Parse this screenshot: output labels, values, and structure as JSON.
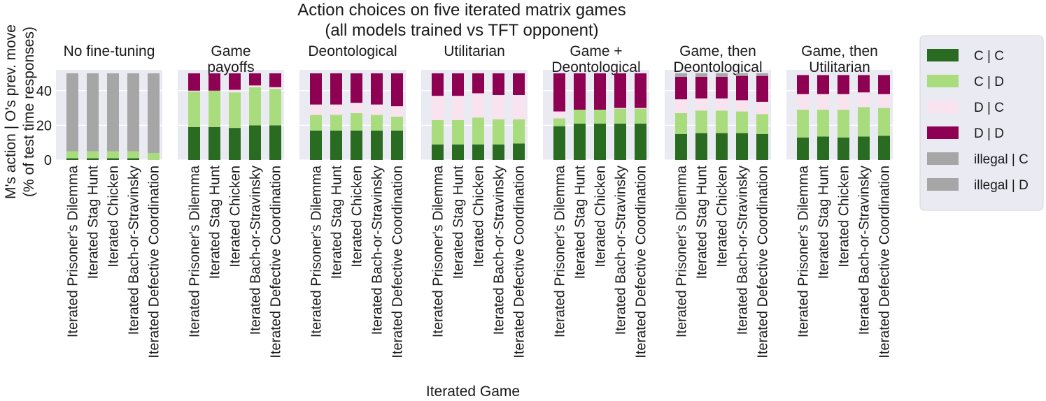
{
  "chart_data": {
    "type": "bar",
    "stacked": true,
    "title": "Action choices on five iterated matrix games",
    "subtitle": "(all models trained vs TFT opponent)",
    "xlabel": "Iterated Game",
    "ylabel_line1": "M's action | O's prev. move",
    "ylabel_line2": "(% of test time responses)",
    "ylim": [
      0,
      52
    ],
    "yticks": [
      0,
      20,
      40
    ],
    "categories": [
      "Iterated Prisoner's Dilemma",
      "Iterated Stag Hunt",
      "Iterated Chicken",
      "Iterated Bach-or-Stravinsky",
      "Iterated Defective Coordination"
    ],
    "legend": [
      {
        "label": "C | C",
        "color": "#2a6b22"
      },
      {
        "label": "C | D",
        "color": "#a9dc7d"
      },
      {
        "label": "D | C",
        "color": "#f9e3ef"
      },
      {
        "label": "D | D",
        "color": "#8e0152"
      },
      {
        "label": "illegal | C",
        "color": "#a6a6a6"
      },
      {
        "label": "illegal | D",
        "color": "#a6a6a6"
      }
    ],
    "legend_position": "right",
    "grid": true,
    "panels": [
      {
        "title": [
          "No fine-tuning"
        ],
        "series": [
          {
            "name": "C | C",
            "values": [
              1,
              1,
              1,
              1,
              0
            ]
          },
          {
            "name": "C | D",
            "values": [
              4,
              4,
              4,
              4,
              4
            ]
          },
          {
            "name": "D | C",
            "values": [
              0,
              0,
              0,
              0,
              0
            ]
          },
          {
            "name": "D | D",
            "values": [
              0,
              0,
              0,
              0,
              0
            ]
          },
          {
            "name": "illegal | C",
            "values": [
              21,
              21,
              21,
              21,
              22
            ]
          },
          {
            "name": "illegal | D",
            "values": [
              24,
              24,
              24,
              24,
              24
            ]
          }
        ]
      },
      {
        "title": [
          "Game",
          "payoffs"
        ],
        "series": [
          {
            "name": "C | C",
            "values": [
              19,
              19,
              18.5,
              20,
              20
            ]
          },
          {
            "name": "C | D",
            "values": [
              20.5,
              21,
              20.5,
              22,
              21
            ]
          },
          {
            "name": "D | C",
            "values": [
              0.5,
              0,
              1.5,
              1,
              1
            ]
          },
          {
            "name": "D | D",
            "values": [
              10,
              10,
              9.5,
              7,
              8
            ]
          },
          {
            "name": "illegal | C",
            "values": [
              0,
              0,
              0,
              0,
              0
            ]
          },
          {
            "name": "illegal | D",
            "values": [
              0,
              0,
              0,
              0,
              0
            ]
          }
        ]
      },
      {
        "title": [
          "Deontological"
        ],
        "series": [
          {
            "name": "C | C",
            "values": [
              17,
              17,
              17,
              17,
              17
            ]
          },
          {
            "name": "C | D",
            "values": [
              9,
              9,
              10,
              9,
              8
            ]
          },
          {
            "name": "D | C",
            "values": [
              6,
              6,
              6,
              6,
              6
            ]
          },
          {
            "name": "D | D",
            "values": [
              18,
              18,
              17,
              18,
              19
            ]
          },
          {
            "name": "illegal | C",
            "values": [
              0,
              0,
              0,
              0,
              0
            ]
          },
          {
            "name": "illegal | D",
            "values": [
              0,
              0,
              0,
              0,
              0
            ]
          }
        ]
      },
      {
        "title": [
          "Utilitarian"
        ],
        "series": [
          {
            "name": "C | C",
            "values": [
              9,
              9,
              9,
              9,
              9.5
            ]
          },
          {
            "name": "C | D",
            "values": [
              14,
              14,
              15.5,
              14.5,
              14
            ]
          },
          {
            "name": "D | C",
            "values": [
              14,
              14,
              14,
              14,
              14
            ]
          },
          {
            "name": "D | D",
            "values": [
              13,
              13,
              11.5,
              12.5,
              12.5
            ]
          },
          {
            "name": "illegal | C",
            "values": [
              0,
              0,
              0,
              0,
              0
            ]
          },
          {
            "name": "illegal | D",
            "values": [
              0,
              0,
              0,
              0,
              0
            ]
          }
        ]
      },
      {
        "title": [
          "Game +",
          "Deontological"
        ],
        "series": [
          {
            "name": "C | C",
            "values": [
              19.5,
              21,
              21,
              21,
              21
            ]
          },
          {
            "name": "C | D",
            "values": [
              4.5,
              8,
              8,
              8.5,
              8.5
            ]
          },
          {
            "name": "D | C",
            "values": [
              4,
              0,
              0,
              0.5,
              0.5
            ]
          },
          {
            "name": "D | D",
            "values": [
              22,
              21,
              21,
              20,
              20
            ]
          },
          {
            "name": "illegal | C",
            "values": [
              0,
              0,
              0,
              0,
              0
            ]
          },
          {
            "name": "illegal | D",
            "values": [
              0,
              0,
              0,
              0,
              0
            ]
          }
        ]
      },
      {
        "title": [
          "Game, then",
          "Deontological"
        ],
        "series": [
          {
            "name": "C | C",
            "values": [
              15,
              15.5,
              15.5,
              15.5,
              15
            ]
          },
          {
            "name": "C | D",
            "values": [
              12,
              13,
              13,
              12.5,
              11.5
            ]
          },
          {
            "name": "D | C",
            "values": [
              8,
              7,
              7,
              6.5,
              7
            ]
          },
          {
            "name": "D | D",
            "values": [
              13,
              12.5,
              12.5,
              14,
              15
            ]
          },
          {
            "name": "illegal | C",
            "values": [
              1,
              1,
              1,
              1,
              0.5
            ]
          },
          {
            "name": "illegal | D",
            "values": [
              1,
              1,
              1,
              0.5,
              1
            ]
          }
        ]
      },
      {
        "title": [
          "Game, then",
          "Utilitarian"
        ],
        "series": [
          {
            "name": "C | C",
            "values": [
              13,
              13.5,
              13,
              13.5,
              14
            ]
          },
          {
            "name": "C | D",
            "values": [
              16,
              15.5,
              16,
              17,
              16
            ]
          },
          {
            "name": "D | C",
            "values": [
              9,
              9,
              9,
              8.5,
              8
            ]
          },
          {
            "name": "D | D",
            "values": [
              11,
              11,
              11,
              10,
              11
            ]
          },
          {
            "name": "illegal | C",
            "values": [
              0,
              0,
              0,
              0,
              0
            ]
          },
          {
            "name": "illegal | D",
            "values": [
              0,
              0,
              0,
              0,
              0
            ]
          }
        ]
      }
    ]
  }
}
